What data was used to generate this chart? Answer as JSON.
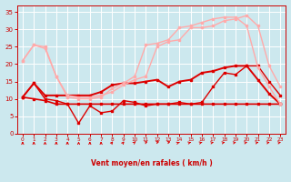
{
  "background_color": "#cce8ee",
  "grid_color": "#ffffff",
  "xlabel": "Vent moyen/en rafales ( km/h )",
  "xlabel_color": "#cc0000",
  "tick_color": "#cc0000",
  "ylim": [
    0,
    37
  ],
  "xlim": [
    -0.5,
    23.5
  ],
  "yticks": [
    0,
    5,
    10,
    15,
    20,
    25,
    30,
    35
  ],
  "xticks": [
    0,
    1,
    2,
    3,
    4,
    5,
    6,
    7,
    8,
    9,
    10,
    11,
    12,
    13,
    14,
    15,
    16,
    17,
    18,
    19,
    20,
    21,
    22,
    23
  ],
  "lines": [
    {
      "x": [
        0,
        1,
        2,
        3,
        4,
        5,
        6,
        7,
        8,
        9,
        10,
        11,
        12,
        13,
        14,
        15,
        16,
        17,
        18,
        19,
        20,
        21,
        22,
        23
      ],
      "y": [
        10.5,
        14.5,
        10,
        9.5,
        8.5,
        3,
        8,
        6,
        6.5,
        9.5,
        9,
        8,
        8.5,
        8.5,
        9,
        8.5,
        9,
        13.5,
        17.5,
        17,
        19.5,
        19.5,
        15,
        11
      ],
      "color": "#dd0000",
      "lw": 1.0,
      "marker": "s",
      "ms": 1.8
    },
    {
      "x": [
        0,
        1,
        2,
        3,
        4,
        5,
        6,
        7,
        8,
        9,
        10,
        11,
        12,
        13,
        14,
        15,
        16,
        17,
        18,
        19,
        20,
        21,
        22,
        23
      ],
      "y": [
        10.5,
        10,
        9.5,
        8.5,
        8.5,
        8.5,
        8.5,
        8.5,
        8.5,
        8.5,
        8.5,
        8.5,
        8.5,
        8.5,
        8.5,
        8.5,
        8.5,
        8.5,
        8.5,
        8.5,
        8.5,
        8.5,
        8.5,
        8.5
      ],
      "color": "#dd0000",
      "lw": 1.2,
      "marker": "s",
      "ms": 1.8
    },
    {
      "x": [
        0,
        1,
        2,
        3,
        4,
        5,
        6,
        7,
        8,
        9,
        10,
        11,
        12,
        13,
        14,
        15,
        16,
        17,
        18,
        19,
        20,
        21,
        22,
        23
      ],
      "y": [
        10.5,
        14.5,
        11,
        11,
        11,
        11,
        11,
        12,
        14,
        14.5,
        14.5,
        15,
        15.5,
        13.5,
        15,
        15.5,
        17.5,
        18,
        19,
        19.5,
        19.5,
        15.5,
        11.5,
        8.5
      ],
      "color": "#dd0000",
      "lw": 1.4,
      "marker": "s",
      "ms": 1.8
    },
    {
      "x": [
        0,
        1,
        2,
        3,
        4,
        5,
        6,
        7,
        8,
        9,
        10,
        11,
        12,
        13,
        14,
        15,
        16,
        17,
        18,
        19,
        20,
        21,
        22,
        23
      ],
      "y": [
        21,
        25.5,
        24.5,
        16.5,
        11,
        10.5,
        10.5,
        11,
        12,
        14,
        15.5,
        16.5,
        25,
        26.5,
        27,
        30.5,
        30.5,
        31,
        32.5,
        33,
        34,
        31,
        19.5,
        13.5
      ],
      "color": "#ffaaaa",
      "lw": 1.0,
      "marker": "s",
      "ms": 1.8
    },
    {
      "x": [
        0,
        1,
        2,
        3,
        4,
        5,
        6,
        7,
        8,
        9,
        10,
        11,
        12,
        13,
        14,
        15,
        16,
        17,
        18,
        19,
        20,
        21,
        22,
        23
      ],
      "y": [
        21,
        25.5,
        25,
        16.5,
        10.5,
        10,
        10,
        10.5,
        13,
        14.5,
        16.5,
        25.5,
        26,
        27,
        30.5,
        31,
        32,
        33,
        33.5,
        33.5,
        31,
        19,
        13.5,
        8.5
      ],
      "color": "#ffaaaa",
      "lw": 1.0,
      "marker": "s",
      "ms": 1.8
    }
  ],
  "wind_angles": [
    0,
    0,
    0,
    0,
    0,
    0,
    0,
    0,
    10,
    10,
    15,
    25,
    30,
    30,
    35,
    40,
    40,
    45,
    45,
    45,
    45,
    45,
    45,
    45
  ]
}
